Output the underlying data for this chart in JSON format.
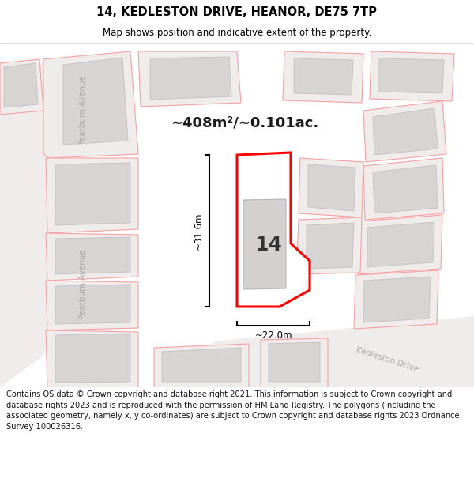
{
  "title_line1": "14, KEDLESTON DRIVE, HEANOR, DE75 7TP",
  "title_line2": "Map shows position and indicative extent of the property.",
  "footer_text": "Contains OS data © Crown copyright and database right 2021. This information is subject to Crown copyright and database rights 2023 and is reproduced with the permission of HM Land Registry. The polygons (including the associated geometry, namely x, y co-ordinates) are subject to Crown copyright and database rights 2023 Ordnance Survey 100026316.",
  "area_label": "~408m²/~0.101ac.",
  "number_label": "14",
  "dim_height": "~31.6m",
  "dim_width": "~22.0m",
  "street_label_peatburn_top": "Peatburn Avenue",
  "street_label_peatburn_bot": "Peatburn Avenue",
  "street_label_kedleston": "Kedleston Drive",
  "map_bg": "#ffffff",
  "plot_outline_color": "#ff0000",
  "plot_fill_color": "#ffffff",
  "building_fill": "#d4d0d0",
  "other_plot_stroke": "#f5a0a0",
  "other_plot_fill": "#f0ecec",
  "other_building_fill": "#d8d4d4",
  "other_building_stroke": "#c8c4c4",
  "dim_color": "#000000",
  "title_color": "#000000",
  "footer_color": "#111111",
  "street_color": "#c0b8b8",
  "street_label_color": "#b0a8a8"
}
